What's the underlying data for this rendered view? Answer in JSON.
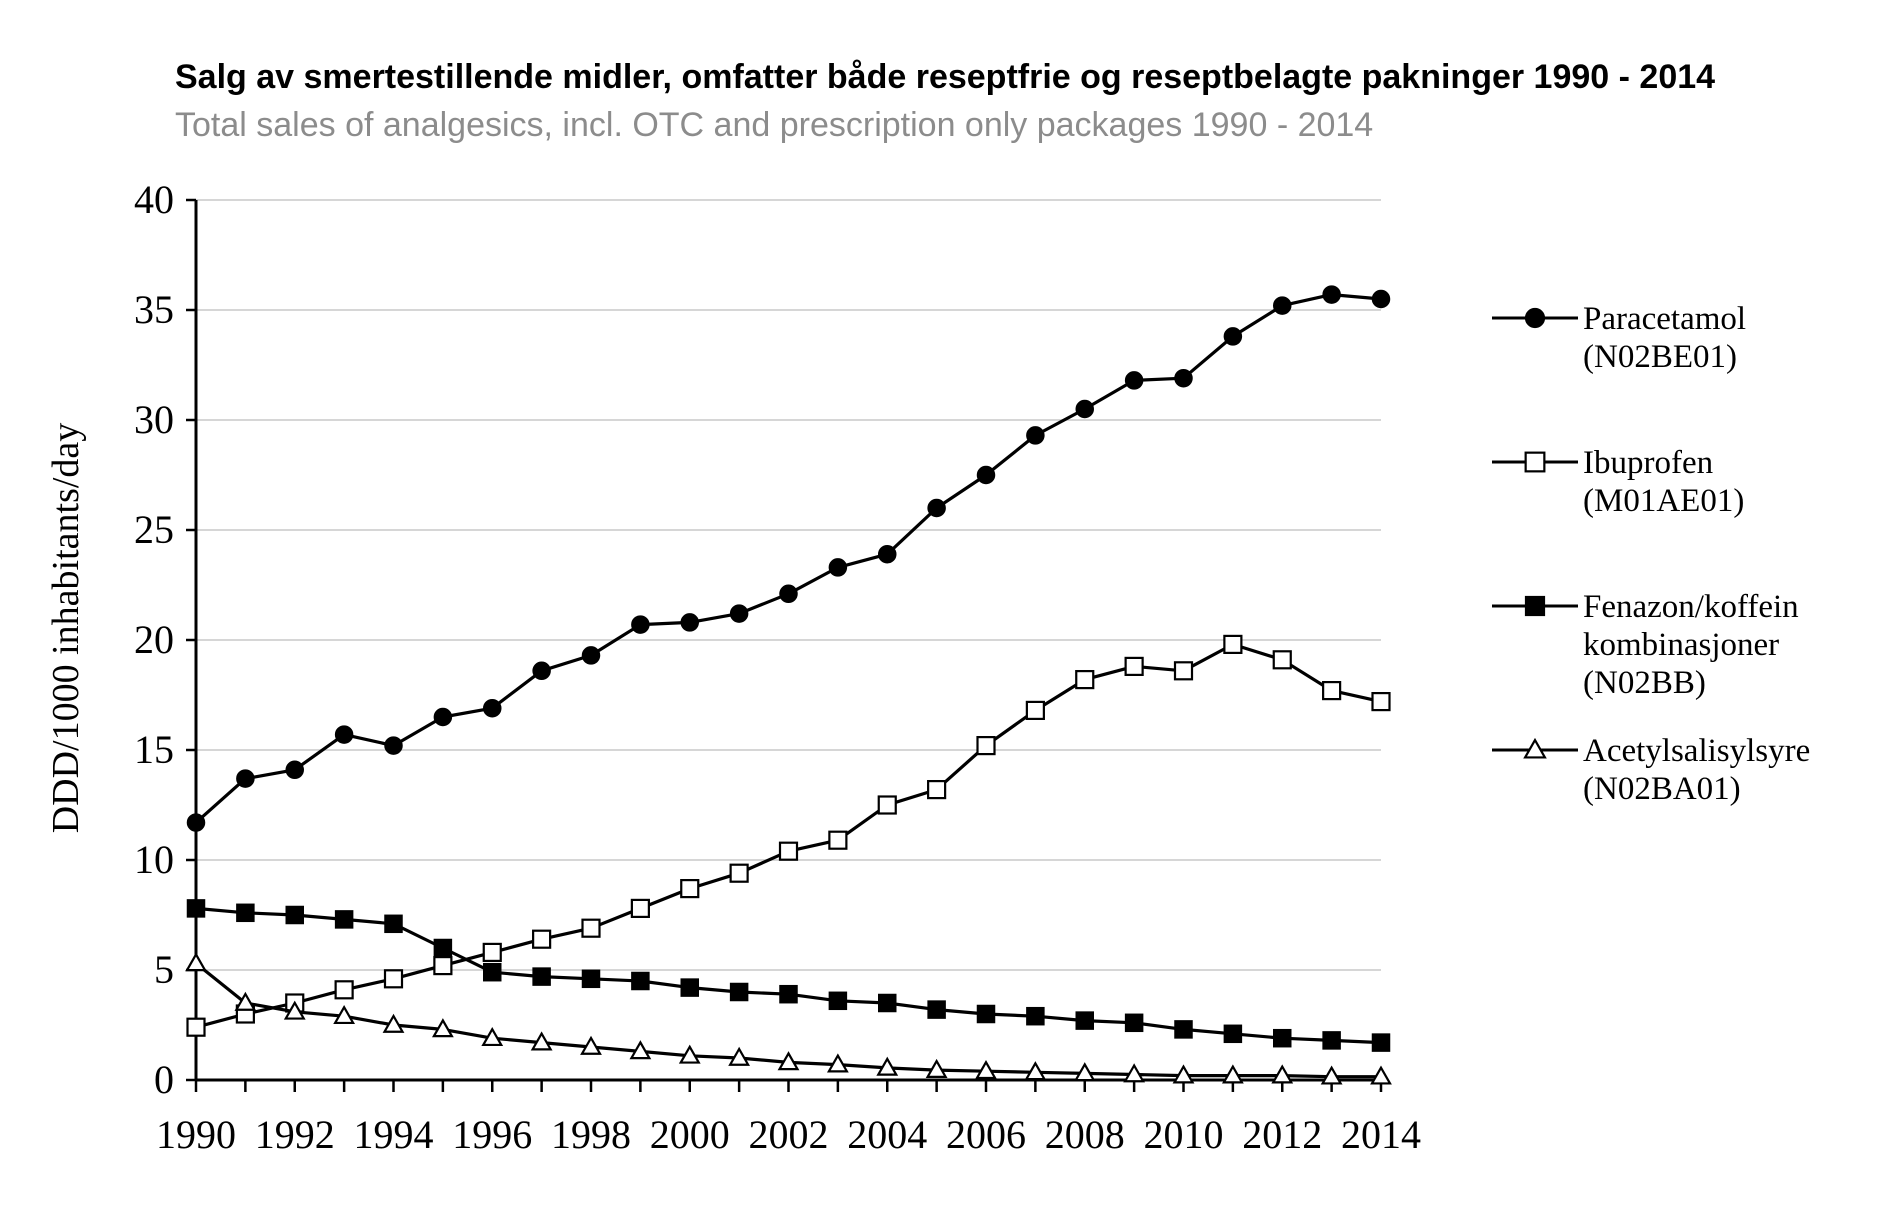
{
  "chart_data": {
    "type": "line",
    "title": "Salg av smertestillende midler, omfatter både reseptfrie og reseptbelagte pakninger 1990 - 2014",
    "subtitle": "Total sales of analgesics, incl. OTC and prescription only packages 1990 - 2014",
    "xlabel": "",
    "ylabel": "DDD/1000 inhabitants/day",
    "x": [
      1990,
      1991,
      1992,
      1993,
      1994,
      1995,
      1996,
      1997,
      1998,
      1999,
      2000,
      2001,
      2002,
      2003,
      2004,
      2005,
      2006,
      2007,
      2008,
      2009,
      2010,
      2011,
      2012,
      2013,
      2014
    ],
    "x_tick_labels": [
      "1990",
      "1992",
      "1994",
      "1996",
      "1998",
      "2000",
      "2002",
      "2004",
      "2006",
      "2008",
      "2010",
      "2012",
      "2014"
    ],
    "y_tick_labels": [
      "0",
      "5",
      "10",
      "15",
      "20",
      "25",
      "30",
      "35",
      "40"
    ],
    "xlim": [
      1990,
      2014
    ],
    "ylim": [
      0,
      40
    ],
    "grid": "horizontal",
    "legend_position": "right",
    "series": [
      {
        "name": "Paracetamol",
        "code": "(N02BE01)",
        "marker": "filled-circle",
        "values": [
          11.7,
          13.7,
          14.1,
          15.7,
          15.2,
          16.5,
          16.9,
          18.6,
          19.3,
          20.7,
          20.8,
          21.2,
          22.1,
          23.3,
          23.9,
          26.0,
          27.5,
          29.3,
          30.5,
          31.8,
          31.9,
          33.8,
          35.2,
          35.7,
          35.5
        ]
      },
      {
        "name": "Ibuprofen",
        "code": "(M01AE01)",
        "marker": "open-square",
        "values": [
          2.4,
          3.0,
          3.5,
          4.1,
          4.6,
          5.2,
          5.8,
          6.4,
          6.9,
          7.8,
          8.7,
          9.4,
          10.4,
          10.9,
          12.5,
          13.2,
          15.2,
          16.8,
          18.2,
          18.8,
          18.6,
          19.8,
          19.1,
          17.7,
          17.2
        ]
      },
      {
        "name": "Fenazon/koffein kombinasjoner",
        "name_lines": [
          "Fenazon/koffein",
          "kombinasjoner"
        ],
        "code": "(N02BB)",
        "marker": "filled-square",
        "values": [
          7.8,
          7.6,
          7.5,
          7.3,
          7.1,
          6.0,
          4.9,
          4.7,
          4.6,
          4.5,
          4.2,
          4.0,
          3.9,
          3.6,
          3.5,
          3.2,
          3.0,
          2.9,
          2.7,
          2.6,
          2.3,
          2.1,
          1.9,
          1.8,
          1.7
        ]
      },
      {
        "name": "Acetylsalisylsyre",
        "code": "(N02BA01)",
        "marker": "open-triangle",
        "values": [
          5.3,
          3.5,
          3.1,
          2.9,
          2.5,
          2.3,
          1.9,
          1.7,
          1.5,
          1.3,
          1.1,
          1.0,
          0.8,
          0.7,
          0.55,
          0.45,
          0.4,
          0.35,
          0.3,
          0.25,
          0.2,
          0.2,
          0.2,
          0.15,
          0.15
        ]
      }
    ]
  }
}
